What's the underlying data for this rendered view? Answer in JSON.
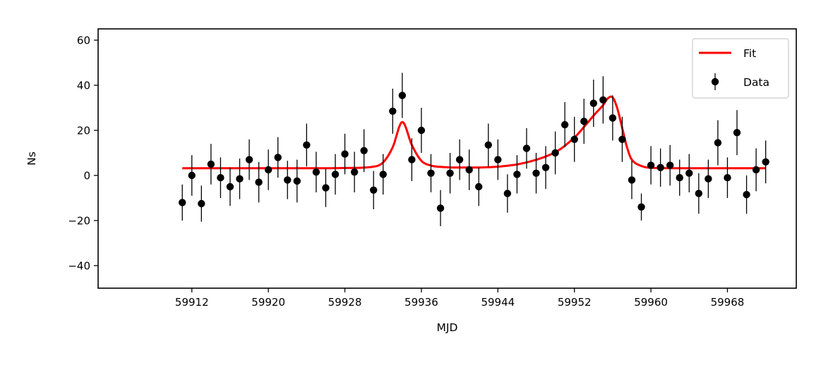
{
  "chart_data": {
    "type": "scatter",
    "xlabel": "MJD",
    "ylabel": "Ns",
    "xlim": [
      59902.2,
      59975.2
    ],
    "ylim": [
      -50,
      65
    ],
    "xticks": [
      59912,
      59920,
      59928,
      59936,
      59944,
      59952,
      59960,
      59968
    ],
    "yticks": [
      -40,
      -20,
      0,
      20,
      40,
      60
    ],
    "grid": false,
    "legend_position": "top-right",
    "series": [
      {
        "name": "Fit",
        "kind": "line",
        "color": "#ff0000",
        "x": [
          59911,
          59920,
          59928,
          59931,
          59932,
          59933,
          59934,
          59935,
          59936,
          59937,
          59938,
          59940,
          59944,
          59947,
          59950,
          59952,
          59953,
          59954,
          59955,
          59955.5,
          59956,
          59956.5,
          59957,
          59957.5,
          59958,
          59959,
          59960,
          59965,
          59972
        ],
        "y": [
          3.2,
          3.2,
          3.3,
          3.9,
          5.8,
          12.5,
          23.7,
          13.5,
          6.5,
          4.4,
          3.8,
          3.5,
          3.9,
          5.8,
          10.3,
          16.8,
          21.5,
          26.5,
          31.2,
          34.2,
          34.6,
          29.5,
          21,
          12.5,
          7,
          4.2,
          3.4,
          3.2,
          3.2
        ]
      },
      {
        "name": "Data",
        "kind": "errorbar",
        "color": "#000000",
        "points": [
          [
            59911,
            -12,
            8
          ],
          [
            59912,
            0,
            9
          ],
          [
            59913,
            -12.5,
            8
          ],
          [
            59914,
            5,
            9
          ],
          [
            59915,
            -1,
            9
          ],
          [
            59916,
            -5,
            8.5
          ],
          [
            59917,
            -1.5,
            9
          ],
          [
            59918,
            7,
            9
          ],
          [
            59919,
            -3,
            9
          ],
          [
            59920,
            2.5,
            9
          ],
          [
            59921,
            8,
            9
          ],
          [
            59922,
            -2,
            8.5
          ],
          [
            59923,
            -2.5,
            9.5
          ],
          [
            59924,
            13.5,
            9.5
          ],
          [
            59925,
            1.5,
            9
          ],
          [
            59926,
            -5.5,
            8.5
          ],
          [
            59927,
            0.5,
            9
          ],
          [
            59928,
            9.5,
            9
          ],
          [
            59929,
            1.5,
            9
          ],
          [
            59930,
            11,
            9.5
          ],
          [
            59931,
            -6.5,
            8.5
          ],
          [
            59932,
            0.5,
            9
          ],
          [
            59933,
            28.5,
            10
          ],
          [
            59934,
            35.5,
            10
          ],
          [
            59935,
            7,
            9.5
          ],
          [
            59936,
            20,
            10
          ],
          [
            59937,
            1,
            8.5
          ],
          [
            59938,
            -14.5,
            8
          ],
          [
            59939,
            1,
            9
          ],
          [
            59940,
            7,
            9
          ],
          [
            59941,
            2.5,
            9
          ],
          [
            59942,
            -5,
            8.5
          ],
          [
            59943,
            13.5,
            9.5
          ],
          [
            59944,
            7,
            9
          ],
          [
            59945,
            -8,
            8.5
          ],
          [
            59946,
            0.5,
            8.5
          ],
          [
            59947,
            12,
            9
          ],
          [
            59948,
            1,
            9
          ],
          [
            59949,
            3.5,
            9.5
          ],
          [
            59950,
            10,
            9.5
          ],
          [
            59951,
            22.5,
            10
          ],
          [
            59952,
            16,
            10
          ],
          [
            59953,
            24,
            10
          ],
          [
            59954,
            32,
            10.5
          ],
          [
            59955,
            33.5,
            10.5
          ],
          [
            59956,
            25.5,
            10
          ],
          [
            59957,
            16,
            10
          ],
          [
            59958,
            -2,
            8.5
          ],
          [
            59959,
            -14,
            6
          ],
          [
            59960,
            4.5,
            8.5
          ],
          [
            59961,
            3.5,
            8.5
          ],
          [
            59962,
            4.5,
            9
          ],
          [
            59963,
            -1,
            8
          ],
          [
            59964,
            1,
            8.5
          ],
          [
            59965,
            -8,
            9
          ],
          [
            59966,
            -1.5,
            8.5
          ],
          [
            59967,
            14.5,
            10
          ],
          [
            59968,
            -1,
            9
          ],
          [
            59969,
            19,
            10
          ],
          [
            59970,
            -8.5,
            8.5
          ],
          [
            59971,
            2.5,
            9.5
          ],
          [
            59972,
            6,
            9.5
          ]
        ]
      }
    ]
  }
}
